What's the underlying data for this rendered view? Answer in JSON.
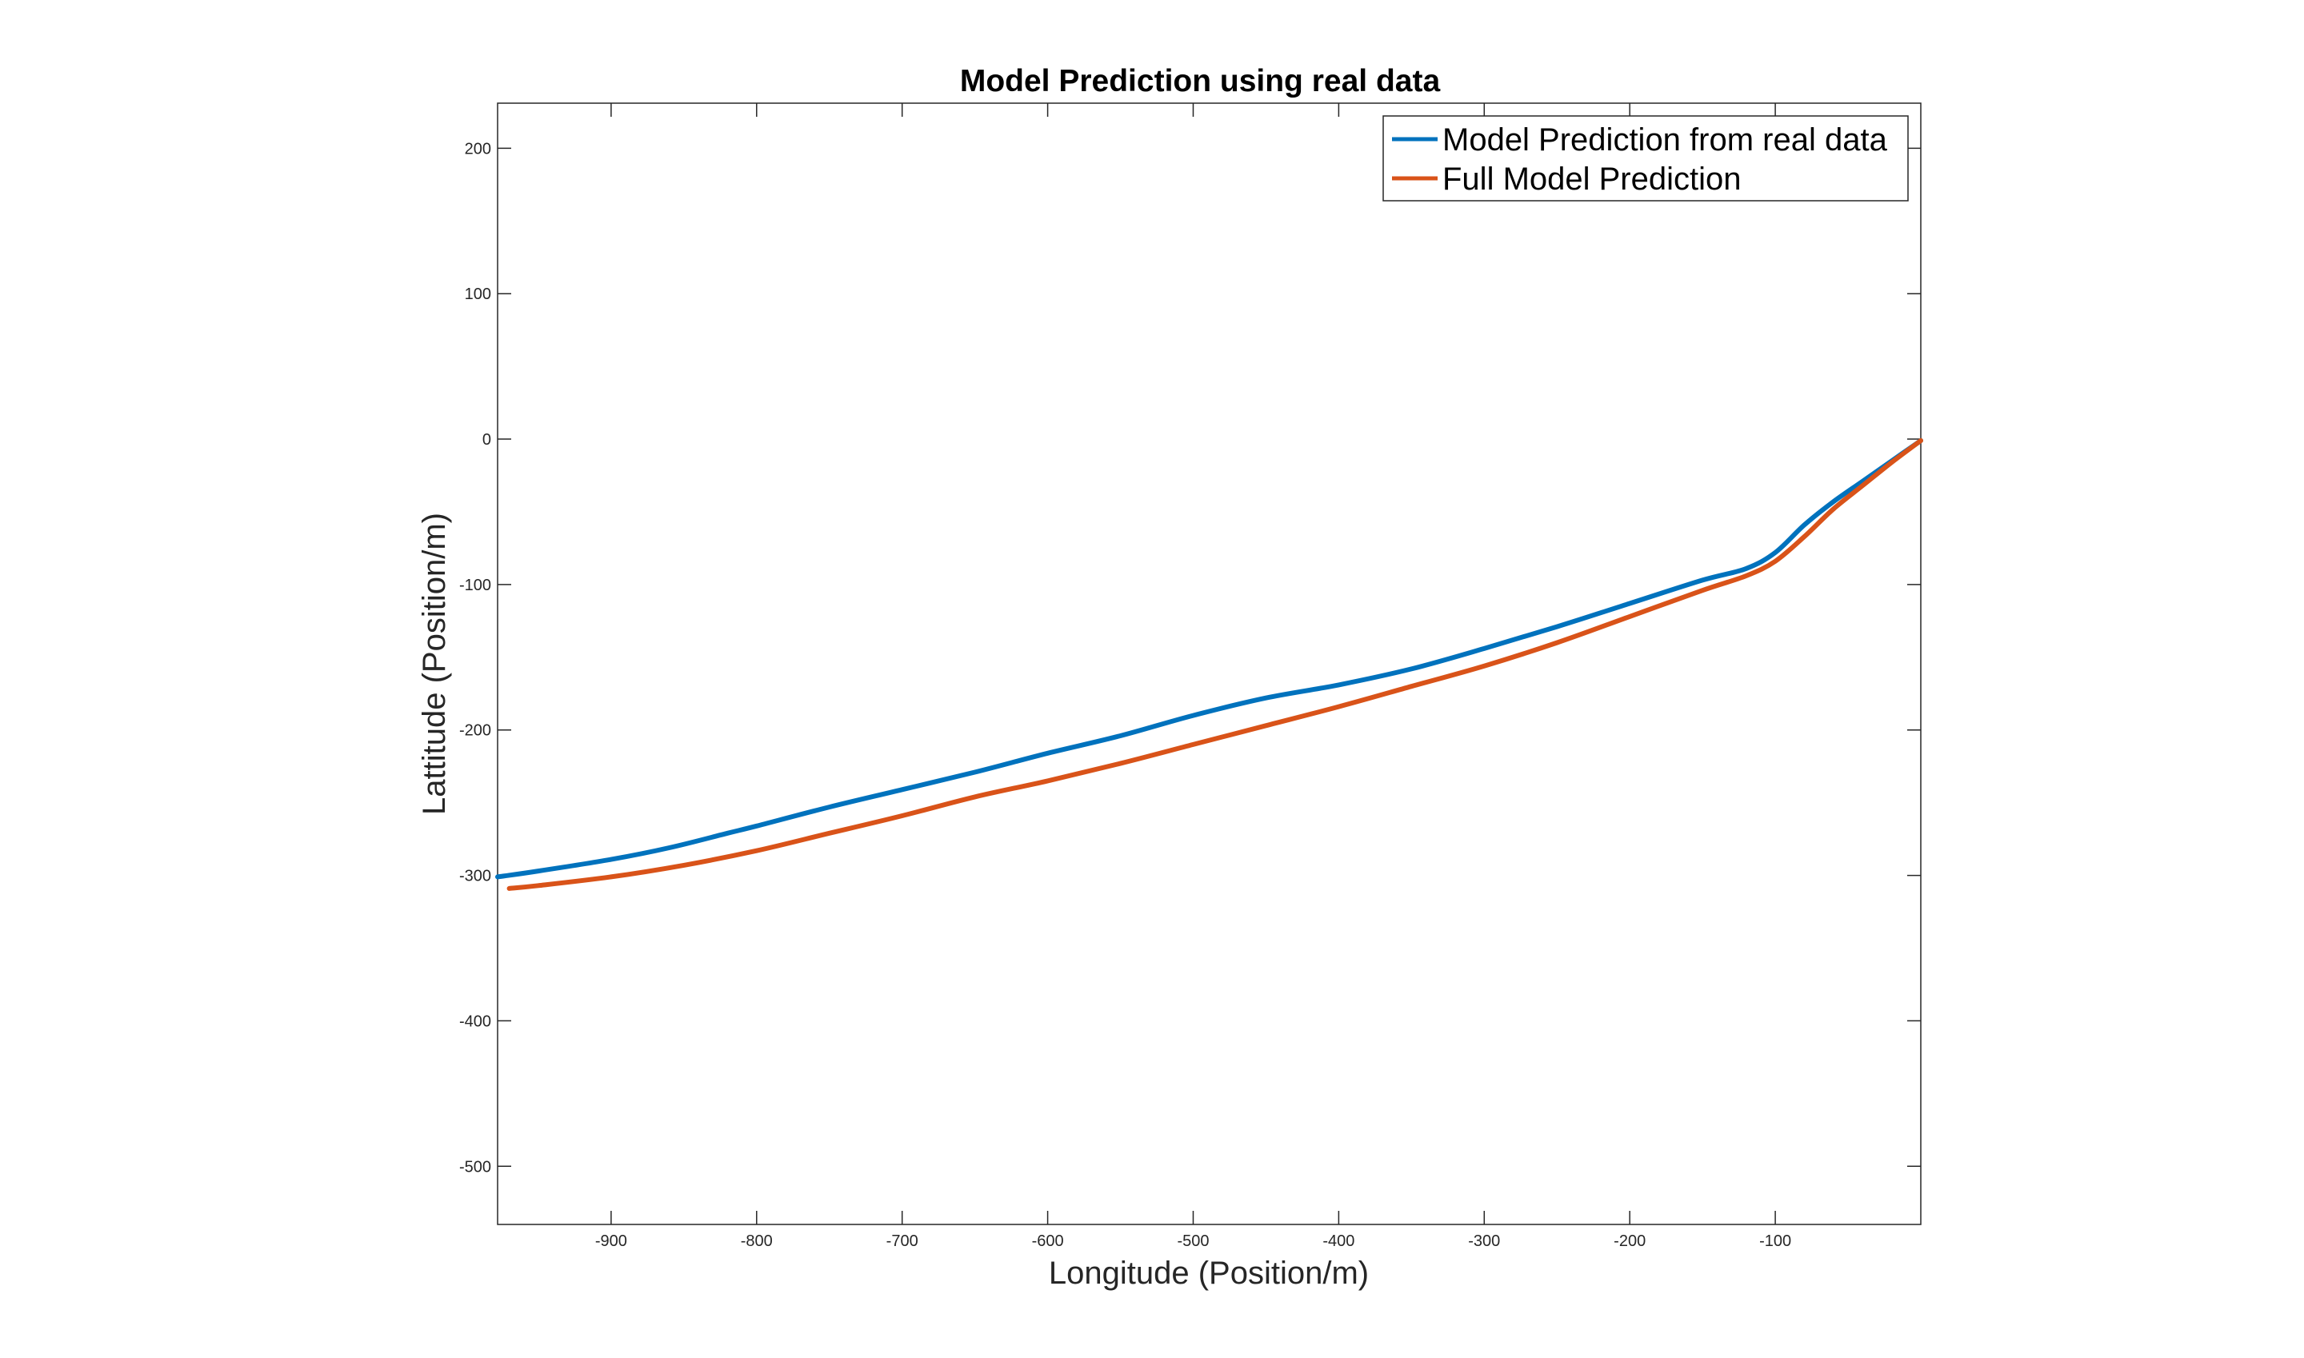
{
  "chart_data": {
    "type": "line",
    "title": "Model Prediction using real data",
    "xlabel": "Longitude (Position/m)",
    "ylabel": "Lattitude (Position/m)",
    "xlim": [
      -978,
      0
    ],
    "ylim": [
      -540,
      231
    ],
    "xticks": [
      -900,
      -800,
      -700,
      -600,
      -500,
      -400,
      -300,
      -200,
      -100
    ],
    "yticks": [
      -500,
      -400,
      -300,
      -200,
      -100,
      0,
      100,
      200
    ],
    "grid": false,
    "legend_position": "top-right",
    "series": [
      {
        "name": "Model Prediction from real data",
        "color": "#0072BD",
        "x": [
          -978,
          -950,
          -900,
          -860,
          -820,
          -800,
          -750,
          -700,
          -650,
          -600,
          -550,
          -500,
          -450,
          -400,
          -350,
          -300,
          -250,
          -200,
          -150,
          -120,
          -100,
          -80,
          -60,
          -40,
          -20,
          0
        ],
        "y": [
          -301,
          -297,
          -289,
          -281,
          -271,
          -266,
          -253,
          -241,
          -229,
          -216,
          -204,
          -190,
          -178,
          -169,
          -158,
          -144,
          -129,
          -113,
          -97,
          -89,
          -78,
          -59,
          -43,
          -29,
          -15,
          -1
        ]
      },
      {
        "name": "Full Model Prediction",
        "color": "#D95319",
        "x": [
          -970,
          -950,
          -900,
          -850,
          -800,
          -750,
          -700,
          -650,
          -600,
          -550,
          -500,
          -450,
          -400,
          -350,
          -300,
          -250,
          -200,
          -150,
          -120,
          -100,
          -80,
          -60,
          -40,
          -20,
          0
        ],
        "y": [
          -309,
          -307,
          -301,
          -293,
          -283,
          -271,
          -259,
          -246,
          -235,
          -223,
          -210,
          -197,
          -184,
          -170,
          -156,
          -140,
          -122,
          -104,
          -94,
          -84,
          -67,
          -48,
          -32,
          -16,
          -1
        ]
      }
    ]
  }
}
